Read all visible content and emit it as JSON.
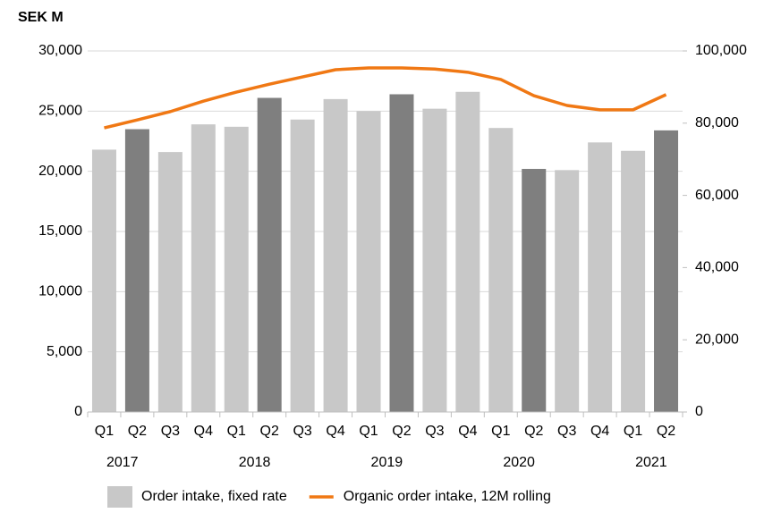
{
  "chart_data": {
    "type": "bar_line",
    "unit_label": "SEK M",
    "categories": [
      "Q1",
      "Q2",
      "Q3",
      "Q4",
      "Q1",
      "Q2",
      "Q3",
      "Q4",
      "Q1",
      "Q2",
      "Q3",
      "Q4",
      "Q1",
      "Q2",
      "Q3",
      "Q4",
      "Q1",
      "Q2"
    ],
    "year_labels": [
      "2017",
      null,
      null,
      null,
      "2018",
      null,
      null,
      null,
      "2019",
      null,
      null,
      null,
      "2020",
      null,
      null,
      null,
      "2021",
      null
    ],
    "series": [
      {
        "name": "Order intake, fixed rate",
        "type": "bar",
        "color": "#c8c8c8",
        "colors": [
          "#c8c8c8",
          "#7f7f7f",
          "#c8c8c8",
          "#c8c8c8",
          "#c8c8c8",
          "#7f7f7f",
          "#c8c8c8",
          "#c8c8c8",
          "#c8c8c8",
          "#7f7f7f",
          "#c8c8c8",
          "#c8c8c8",
          "#c8c8c8",
          "#7f7f7f",
          "#c8c8c8",
          "#c8c8c8",
          "#c8c8c8",
          "#7f7f7f"
        ],
        "values": [
          21800,
          23500,
          21600,
          23900,
          23700,
          26100,
          24300,
          26000,
          25000,
          26400,
          25200,
          26600,
          23600,
          20200,
          20100,
          22400,
          21700,
          23400
        ]
      },
      {
        "name": "Organic order intake, 12M rolling",
        "type": "line",
        "axis": "y2",
        "color": "#f07814",
        "values": [
          78700,
          80900,
          83200,
          86100,
          88600,
          90800,
          92800,
          94800,
          95300,
          95300,
          95000,
          94100,
          92100,
          87600,
          84900,
          83700,
          83700,
          87900
        ]
      }
    ],
    "ylim": [
      0,
      30000
    ],
    "yticks": [
      0,
      {
        "value": 5000,
        "label": "5,000"
      },
      {
        "value": 10000,
        "label": "10,000"
      },
      {
        "value": 15000,
        "label": "15,000"
      },
      {
        "value": 20000,
        "label": "20,000"
      },
      {
        "value": 25000,
        "label": "25,000"
      },
      {
        "value": 30000,
        "label": "30,000"
      }
    ],
    "y2lim": [
      0,
      100000
    ],
    "y2ticks": [
      0,
      {
        "value": 20000,
        "label": "20,000"
      },
      {
        "value": 40000,
        "label": "40,000"
      },
      {
        "value": 60000,
        "label": "60,000"
      },
      {
        "value": 80000,
        "label": "80,000"
      },
      {
        "value": 100000,
        "label": "100,000"
      }
    ],
    "grid": true,
    "legend": "bottom"
  }
}
